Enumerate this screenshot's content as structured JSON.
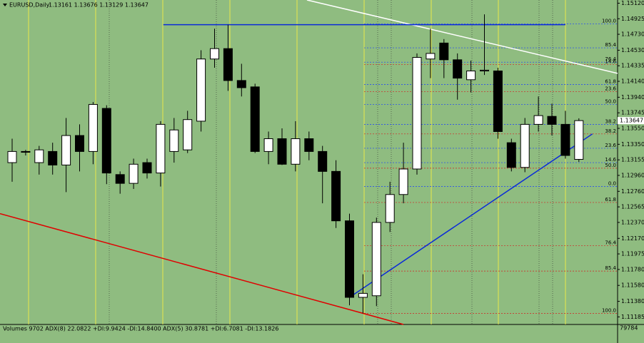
{
  "chart_data": {
    "type": "candlestick",
    "title": "EURUSD,Daily",
    "header_quote": "1.13161 1.13676 1.13129 1.13647",
    "up_color": "#ffffff",
    "down_color": "#000000",
    "ylim": [
      1.1109,
      1.1516
    ],
    "yticks": [
      {
        "value": 1.1512,
        "label": "1.15120"
      },
      1.14925,
      {
        "value": 1.1473,
        "label": "1.14730"
      },
      {
        "value": 1.1453,
        "label": "1.14530"
      },
      1.14335,
      {
        "value": 1.1414,
        "label": "1.14140"
      },
      {
        "value": 1.1394,
        "label": "1.13940"
      },
      1.13745,
      {
        "value": 1.1355,
        "label": "1.13550"
      },
      {
        "value": 1.1335,
        "label": "1.13350"
      },
      1.13155,
      {
        "value": 1.1296,
        "label": "1.12960"
      },
      {
        "value": 1.1276,
        "label": "1.12760"
      },
      1.12565,
      {
        "value": 1.1237,
        "label": "1.12370"
      },
      {
        "value": 1.1217,
        "label": "1.12170"
      },
      1.11975,
      {
        "value": 1.1178,
        "label": "1.11780"
      },
      {
        "value": 1.1158,
        "label": "1.11580"
      },
      {
        "value": 1.1138,
        "label": "1.11380"
      },
      1.11185
    ],
    "open": [
      1.1312,
      1.1326,
      1.1312,
      1.1326,
      1.1309,
      1.1346,
      1.1326,
      1.138,
      1.1297,
      1.1286,
      1.1312,
      1.1299,
      1.1326,
      1.1328,
      1.1364,
      1.1442,
      1.1455,
      1.1415,
      1.1407,
      1.1326,
      1.1342,
      1.131,
      1.1342,
      1.1326,
      1.1301,
      1.1239,
      1.1143,
      1.1145,
      1.1237,
      1.1272,
      1.1304,
      1.1442,
      1.1462,
      1.1441,
      1.1416,
      1.1427,
      1.1427,
      1.1337,
      1.1306,
      1.136,
      1.137,
      1.136,
      1.13161
    ],
    "high": [
      1.1342,
      1.1328,
      1.1333,
      1.1337,
      1.1368,
      1.136,
      1.1388,
      1.1384,
      1.1301,
      1.1317,
      1.1317,
      1.1364,
      1.1368,
      1.1377,
      1.1453,
      1.148,
      1.1485,
      1.1436,
      1.1411,
      1.1351,
      1.1355,
      1.1364,
      1.1351,
      1.1333,
      1.1315,
      1.1248,
      1.1172,
      1.1243,
      1.1288,
      1.1337,
      1.1449,
      1.148,
      1.1467,
      1.1449,
      1.144,
      1.1498,
      1.1431,
      1.1342,
      1.1368,
      1.1395,
      1.1386,
      1.1377,
      1.13676
    ],
    "low": [
      1.1288,
      1.1321,
      1.1297,
      1.1297,
      1.1275,
      1.1301,
      1.131,
      1.1285,
      1.1273,
      1.1279,
      1.1292,
      1.1282,
      1.1312,
      1.1324,
      1.1351,
      1.1431,
      1.1402,
      1.1395,
      1.1324,
      1.131,
      1.1309,
      1.1301,
      1.1315,
      1.1261,
      1.123,
      1.1133,
      1.1123,
      1.1132,
      1.1225,
      1.1261,
      1.1297,
      1.1418,
      1.1418,
      1.1391,
      1.14,
      1.1422,
      1.1342,
      1.1301,
      1.13,
      1.1351,
      1.1346,
      1.1317,
      1.13129
    ],
    "close": [
      1.1326,
      1.1325,
      1.1328,
      1.1309,
      1.1346,
      1.1326,
      1.1385,
      1.1299,
      1.1286,
      1.131,
      1.1299,
      1.136,
      1.1353,
      1.1366,
      1.1442,
      1.1455,
      1.1415,
      1.1406,
      1.1326,
      1.1342,
      1.131,
      1.1342,
      1.1326,
      1.1301,
      1.1239,
      1.1143,
      1.1148,
      1.1237,
      1.1272,
      1.1304,
      1.1444,
      1.1449,
      1.1441,
      1.1418,
      1.1427,
      1.1428,
      1.1351,
      1.1306,
      1.136,
      1.1371,
      1.136,
      1.1321,
      1.13647
    ],
    "last_price": 1.13647,
    "fib_levels": [
      {
        "label": "100.0",
        "price": 1.1486,
        "color": "#1a3cff"
      },
      {
        "label": "85.4",
        "price": 1.1456,
        "color": "#1a3cff"
      },
      {
        "label": "76.4",
        "price": 1.1438,
        "color": "#1a3cff"
      },
      {
        "label": "61.8",
        "price": 1.141,
        "color": "#1a3cff"
      },
      {
        "label": "50.0",
        "price": 1.1385,
        "color": "#1a3cff"
      },
      {
        "label": "38.2",
        "price": 1.136,
        "color": "#1a3cff"
      },
      {
        "label": "23.6",
        "price": 1.133,
        "color": "#1a3cff"
      },
      {
        "label": "14.6",
        "price": 1.1312,
        "color": "#1a3cff"
      },
      {
        "label": "0.0",
        "price": 1.1282,
        "color": "#1a3cff"
      },
      {
        "label": "14.6",
        "price": 1.1435,
        "color": "#d42020"
      },
      {
        "label": "23.6",
        "price": 1.1401,
        "color": "#d42020"
      },
      {
        "label": "38.2",
        "price": 1.1348,
        "color": "#d42020"
      },
      {
        "label": "50.0",
        "price": 1.1305,
        "color": "#d42020"
      },
      {
        "label": "61.8",
        "price": 1.1262,
        "color": "#d42020"
      },
      {
        "label": "76.4",
        "price": 1.1208,
        "color": "#d42020"
      },
      {
        "label": "85.4",
        "price": 1.1176,
        "color": "#d42020"
      },
      {
        "label": "100.0",
        "price": 1.1123,
        "color": "#d42020"
      }
    ],
    "trendlines": [
      {
        "color": "#e00000",
        "x": [
          -0.9,
          29
        ],
        "y": [
          1.1248,
          1.1109
        ]
      },
      {
        "color": "#0a2ad8",
        "x": [
          25,
          43
        ],
        "y": [
          1.1143,
          1.1348
        ]
      },
      {
        "color": "#ffffff",
        "x": [
          21.85,
          46.8
        ],
        "y": [
          1.1516,
          1.1424
        ]
      },
      {
        "color": "#0a2ad8",
        "x": [
          11.2,
          41
        ],
        "y": [
          1.1485,
          1.1485
        ]
      }
    ],
    "indicator_header": "Volumes 9702  ADX(8) 22.0822 +DI:9.9424 -DI:14.8400  ADX(5) 30.8781 +DI:6.7081 -DI:13.1826",
    "volume_axis_max": 79784
  }
}
